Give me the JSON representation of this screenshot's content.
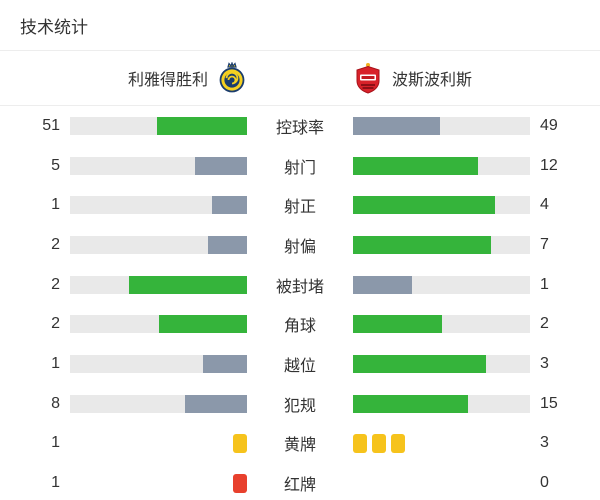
{
  "title": "技术统计",
  "header": {
    "home_team": "利雅得胜利",
    "away_team": "波斯波利斯"
  },
  "colors": {
    "win_bar": "#35b43b",
    "lose_bar": "#8b98aa",
    "track": "#e9e9e9",
    "yellow_card": "#f6c31c",
    "red_card": "#e8402d"
  },
  "icons": {
    "home_crest": "al-nassr-crest-icon",
    "away_crest": "persepolis-crest-icon"
  },
  "chart_data": {
    "type": "bar",
    "title": "技术统计",
    "home_team": "利雅得胜利",
    "away_team": "波斯波利斯",
    "legend_position": "none",
    "rows": [
      {
        "label": "控球率",
        "home": 51,
        "away": 49,
        "display": "bar"
      },
      {
        "label": "射门",
        "home": 5,
        "away": 12,
        "display": "bar"
      },
      {
        "label": "射正",
        "home": 1,
        "away": 4,
        "display": "bar"
      },
      {
        "label": "射偏",
        "home": 2,
        "away": 7,
        "display": "bar"
      },
      {
        "label": "被封堵",
        "home": 2,
        "away": 1,
        "display": "bar"
      },
      {
        "label": "角球",
        "home": 2,
        "away": 2,
        "display": "bar"
      },
      {
        "label": "越位",
        "home": 1,
        "away": 3,
        "display": "bar"
      },
      {
        "label": "犯规",
        "home": 8,
        "away": 15,
        "display": "bar"
      },
      {
        "label": "黄牌",
        "home": 1,
        "away": 3,
        "display": "cards",
        "card": "yellow"
      },
      {
        "label": "红牌",
        "home": 1,
        "away": 0,
        "display": "cards",
        "card": "red"
      }
    ]
  }
}
